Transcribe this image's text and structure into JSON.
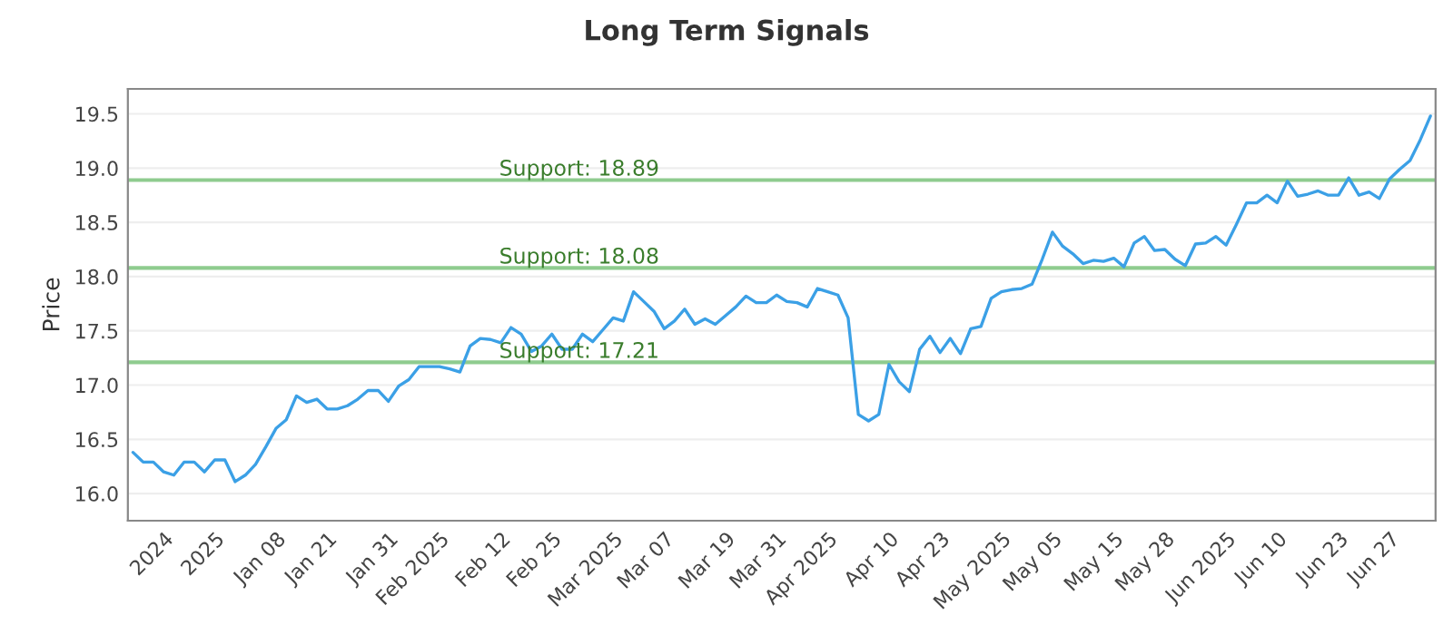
{
  "chart_data": {
    "type": "line",
    "title": "Long Term Signals",
    "ylabel": "Price",
    "categories": [
      null,
      null,
      null,
      "2024",
      null,
      null,
      null,
      null,
      "2025",
      null,
      null,
      null,
      null,
      null,
      "Jan 08",
      null,
      null,
      null,
      null,
      "Jan 21",
      null,
      null,
      null,
      null,
      null,
      "Jan 31",
      null,
      null,
      null,
      null,
      "Feb 2025",
      null,
      null,
      null,
      null,
      null,
      "Feb 12",
      null,
      null,
      null,
      null,
      "Feb 25",
      null,
      null,
      null,
      null,
      null,
      "Mar 2025",
      null,
      null,
      null,
      null,
      "Mar 07",
      null,
      null,
      null,
      null,
      null,
      "Mar 19",
      null,
      null,
      null,
      null,
      "Mar 31",
      null,
      null,
      null,
      null,
      "Apr 2025",
      null,
      null,
      null,
      null,
      null,
      "Apr 10",
      null,
      null,
      null,
      null,
      "Apr 23",
      null,
      null,
      null,
      null,
      null,
      "May 2025",
      null,
      null,
      null,
      null,
      "May 05",
      null,
      null,
      null,
      null,
      null,
      "May 15",
      null,
      null,
      null,
      null,
      "May 28",
      null,
      null,
      null,
      null,
      null,
      "Jun 2025",
      null,
      null,
      null,
      null,
      "Jun 10",
      null,
      null,
      null,
      null,
      null,
      "Jun 23",
      null,
      null,
      null,
      null,
      "Jun 27",
      null,
      null,
      null,
      null
    ],
    "series": [
      {
        "color": "#3ba0e6",
        "values": [
          16.38,
          16.29,
          16.29,
          16.2,
          16.17,
          16.29,
          16.29,
          16.2,
          16.31,
          16.31,
          16.11,
          16.17,
          16.27,
          16.43,
          16.6,
          16.68,
          16.9,
          16.84,
          16.87,
          16.78,
          16.78,
          16.81,
          16.87,
          16.95,
          16.95,
          16.85,
          16.99,
          17.05,
          17.17,
          17.17,
          17.17,
          17.15,
          17.12,
          17.36,
          17.43,
          17.42,
          17.39,
          17.53,
          17.47,
          17.31,
          17.36,
          17.47,
          17.33,
          17.33,
          17.47,
          17.4,
          17.51,
          17.62,
          17.59,
          17.86,
          17.77,
          17.68,
          17.52,
          17.59,
          17.7,
          17.56,
          17.61,
          17.56,
          17.64,
          17.72,
          17.82,
          17.76,
          17.76,
          17.83,
          17.77,
          17.76,
          17.72,
          17.89,
          17.86,
          17.83,
          17.62,
          16.73,
          16.67,
          16.73,
          17.19,
          17.03,
          16.94,
          17.33,
          17.45,
          17.3,
          17.43,
          17.29,
          17.52,
          17.54,
          17.8,
          17.86,
          17.88,
          17.89,
          17.93,
          18.16,
          18.41,
          18.28,
          18.21,
          18.12,
          18.15,
          18.14,
          18.17,
          18.09,
          18.31,
          18.37,
          18.24,
          18.25,
          18.16,
          18.1,
          18.3,
          18.31,
          18.37,
          18.29,
          18.48,
          18.68,
          18.68,
          18.75,
          18.68,
          18.88,
          18.74,
          18.76,
          18.79,
          18.75,
          18.75,
          18.91,
          18.75,
          18.78,
          18.72,
          18.9,
          18.99,
          19.07,
          19.26,
          19.48
        ]
      }
    ],
    "ylim": [
      15.75,
      19.73
    ],
    "yticks": [
      {
        "value": 16,
        "label": "16.0"
      },
      16.5,
      {
        "value": 17,
        "label": "17.0"
      },
      17.5,
      {
        "value": 18,
        "label": "18.0"
      },
      18.5,
      {
        "value": 19,
        "label": "19.0"
      },
      19.5
    ],
    "ref_lines": [
      {
        "axis": "y",
        "value": 18.89,
        "label": "Support: 18.89",
        "color": "#8fcc8f"
      },
      {
        "axis": "y",
        "value": 18.08,
        "label": "Support: 18.08",
        "color": "#8fcc8f"
      },
      {
        "axis": "y",
        "value": 17.21,
        "label": "Support: 17.21",
        "color": "#8fcc8f"
      }
    ],
    "grid": "y",
    "marker": "none",
    "line_style": "solid",
    "legend": false
  }
}
